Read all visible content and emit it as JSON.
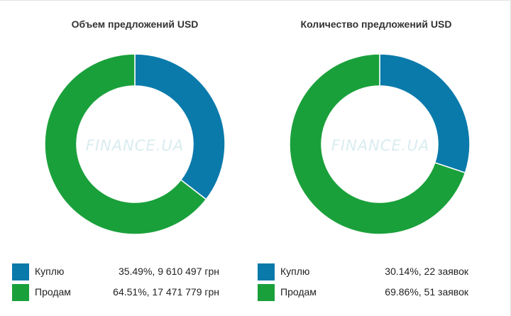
{
  "colors": {
    "buy": "#0a7aab",
    "sell": "#1aa03b"
  },
  "watermark": "FINANCE.UA",
  "chart_data": [
    {
      "type": "pie",
      "title": "Объем предложений USD",
      "slices": [
        {
          "label": "Куплю",
          "percent": 35.49,
          "value_text": "35.49%, 9 610 497 грн",
          "color": "#0a7aab"
        },
        {
          "label": "Продам",
          "percent": 64.51,
          "value_text": "64.51%, 17 471 779 грн",
          "color": "#1aa03b"
        }
      ]
    },
    {
      "type": "pie",
      "title": "Количество предложений USD",
      "slices": [
        {
          "label": "Куплю",
          "percent": 30.14,
          "value_text": "30.14%, 22 заявок",
          "color": "#0a7aab"
        },
        {
          "label": "Продам",
          "percent": 69.86,
          "value_text": "69.86%, 51 заявок",
          "color": "#1aa03b"
        }
      ]
    }
  ]
}
